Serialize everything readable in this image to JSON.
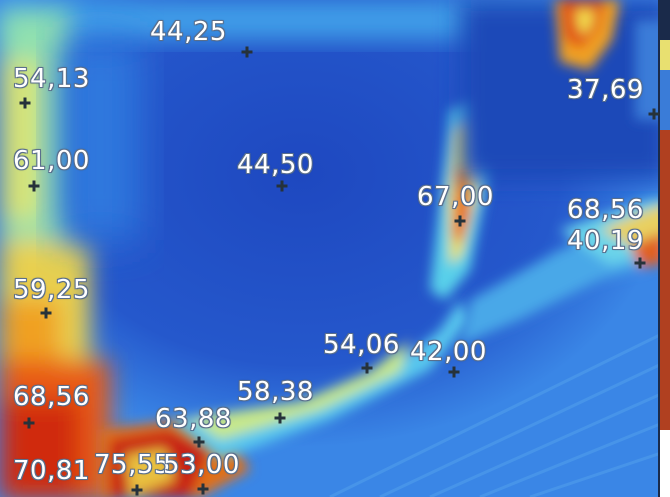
{
  "image": {
    "kind": "thermal-camera-image",
    "palette": [
      "#1a3fb0",
      "#2f6ee0",
      "#3fa8f0",
      "#7fe0e8",
      "#e8e46a",
      "#f5a020",
      "#e03018",
      "#b01010"
    ]
  },
  "readings": [
    {
      "id": "r1",
      "label": "44,25"
    },
    {
      "id": "r2",
      "label": "54,13"
    },
    {
      "id": "r3",
      "label": "61,00"
    },
    {
      "id": "r4",
      "label": "44,50"
    },
    {
      "id": "r5",
      "label": "67,00"
    },
    {
      "id": "r6",
      "label": "37,69"
    },
    {
      "id": "r7",
      "label": "68,56"
    },
    {
      "id": "r8",
      "label": "40,19"
    },
    {
      "id": "r9",
      "label": "59,25"
    },
    {
      "id": "r10",
      "label": "54,06"
    },
    {
      "id": "r11",
      "label": "42,00"
    },
    {
      "id": "r12",
      "label": "58,38"
    },
    {
      "id": "r13",
      "label": "68,56"
    },
    {
      "id": "r14",
      "label": "63,88"
    },
    {
      "id": "r15",
      "label": "70,81"
    },
    {
      "id": "r16",
      "label": "75,55"
    },
    {
      "id": "r17",
      "label": "53,00"
    }
  ]
}
